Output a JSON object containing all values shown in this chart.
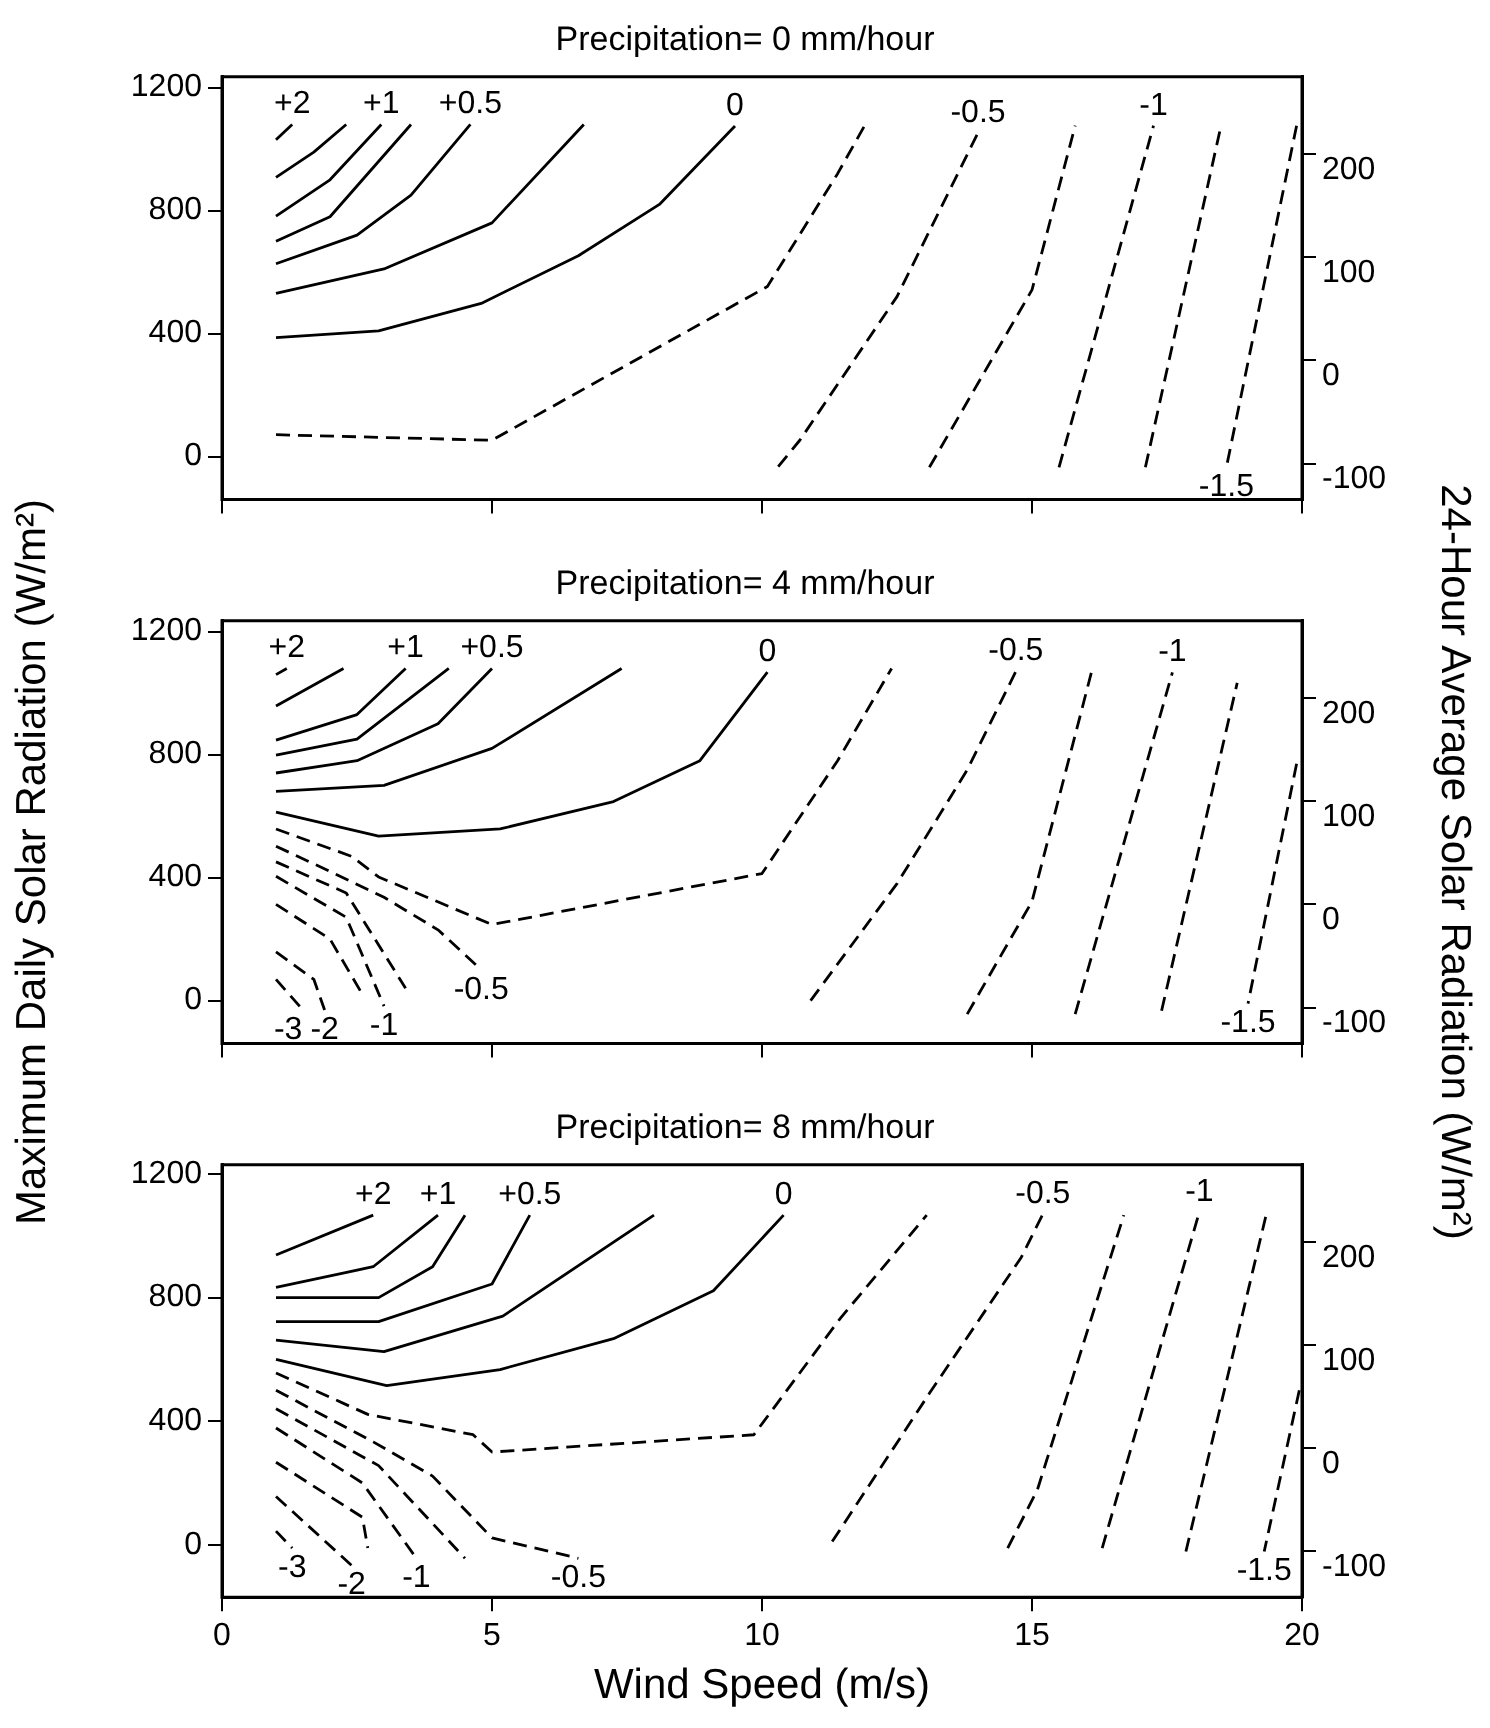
{
  "chart_data": [
    {
      "type": "line",
      "title": "Precipitation= 0 mm/hour",
      "xlim": [
        0,
        20
      ],
      "xticks": [
        0,
        5,
        10,
        15,
        20
      ],
      "ylim": [
        -140,
        1235
      ],
      "yticks": [
        0,
        400,
        800,
        1200
      ],
      "y2lim": [
        -135,
        275
      ],
      "y2ticks": [
        -100,
        0,
        100,
        200
      ],
      "tick_labels": "y",
      "grid": false,
      "legend": false,
      "series": [
        {
          "name": "+2",
          "color": "#000000",
          "line_style": "solid",
          "x": [
            1,
            1.3
          ],
          "values": [
            1030,
            1080
          ]
        },
        {
          "color": "#000000",
          "line_style": "solid",
          "x": [
            1,
            1.7,
            2.3
          ],
          "values": [
            908,
            990,
            1080
          ]
        },
        {
          "name": "+1",
          "color": "#000000",
          "line_style": "solid",
          "x": [
            1,
            2,
            2.95
          ],
          "values": [
            782,
            900,
            1080
          ]
        },
        {
          "color": "#000000",
          "line_style": "solid",
          "x": [
            1,
            2,
            3.5
          ],
          "values": [
            700,
            780,
            1080
          ]
        },
        {
          "name": "+0.5",
          "color": "#000000",
          "line_style": "solid",
          "x": [
            1,
            2.5,
            3.5,
            4.6
          ],
          "values": [
            627,
            720,
            850,
            1080
          ]
        },
        {
          "color": "#000000",
          "line_style": "solid",
          "x": [
            1,
            3,
            5,
            6.7
          ],
          "values": [
            531,
            610,
            760,
            1080
          ]
        },
        {
          "name": "0",
          "color": "#000000",
          "line_style": "solid",
          "x": [
            1,
            2.9,
            4.8,
            6.6,
            8.1,
            9.5
          ],
          "values": [
            387,
            409,
            498,
            653,
            820,
            1075
          ]
        },
        {
          "color": "#000000",
          "line_style": "dashed",
          "x": [
            1,
            5,
            10.1,
            11.4,
            11.9
          ],
          "values": [
            71,
            53,
            553,
            920,
            1076
          ]
        },
        {
          "name": "-0.5",
          "color": "#000000",
          "line_style": "dashed",
          "x": [
            10.3,
            10.7,
            12.5,
            14.0
          ],
          "values": [
            -33,
            53,
            520,
            1053
          ]
        },
        {
          "color": "#000000",
          "line_style": "dashed",
          "x": [
            13.1,
            15.0,
            15.8
          ],
          "values": [
            -35,
            542,
            1076
          ]
        },
        {
          "name": "-1",
          "color": "#000000",
          "line_style": "dashed",
          "x": [
            15.5,
            17.25
          ],
          "values": [
            -35,
            1076
          ]
        },
        {
          "color": "#000000",
          "line_style": "dashed",
          "x": [
            17.1,
            18.5
          ],
          "values": [
            -35,
            1076
          ]
        },
        {
          "name": "-1.5",
          "color": "#000000",
          "line_style": "dashed",
          "x": [
            19.9,
            18.6
          ],
          "values": [
            1076,
            -35
          ]
        }
      ]
    },
    {
      "type": "line",
      "title": "Precipitation= 4 mm/hour",
      "ylabel": "Maximum Daily Solar Radiation (W/m²)",
      "y2label": "24-Hour Average Solar Radiation (W/m²)",
      "xlim": [
        0,
        20
      ],
      "xticks": [
        0,
        5,
        10,
        15,
        20
      ],
      "ylim": [
        -140,
        1235
      ],
      "yticks": [
        0,
        400,
        800,
        1200
      ],
      "y2lim": [
        -135,
        275
      ],
      "y2ticks": [
        -100,
        0,
        100,
        200
      ],
      "tick_labels": "y",
      "grid": false,
      "legend": false,
      "series": [
        {
          "name": "+2",
          "color": "#000000",
          "line_style": "solid",
          "x": [
            1,
            1.2
          ],
          "values": [
            1060,
            1080
          ]
        },
        {
          "color": "#000000",
          "line_style": "solid",
          "x": [
            1,
            2.25
          ],
          "values": [
            958,
            1080
          ]
        },
        {
          "name": "+1",
          "color": "#000000",
          "line_style": "solid",
          "x": [
            1,
            2.5,
            3.4
          ],
          "values": [
            847,
            930,
            1080
          ]
        },
        {
          "color": "#000000",
          "line_style": "solid",
          "x": [
            1,
            2.5,
            4.2
          ],
          "values": [
            798,
            850,
            1080
          ]
        },
        {
          "name": "+0.5",
          "color": "#000000",
          "line_style": "solid",
          "x": [
            1,
            2.5,
            4,
            5
          ],
          "values": [
            740,
            780,
            900,
            1080
          ]
        },
        {
          "color": "#000000",
          "line_style": "solid",
          "x": [
            1,
            3,
            5,
            7.4
          ],
          "values": [
            680,
            700,
            820,
            1080
          ]
        },
        {
          "name": "0",
          "color": "#000000",
          "line_style": "solid",
          "x": [
            1,
            2.9,
            5.15,
            7.25,
            8.85,
            10.1
          ],
          "values": [
            613,
            535,
            558,
            647,
            780,
            1068
          ]
        },
        {
          "color": "#000000",
          "line_style": "dashed",
          "x": [
            1,
            2.4,
            2.9,
            5,
            10,
            11.4,
            12.4
          ],
          "values": [
            558,
            469,
            402,
            247,
            413,
            780,
            1080
          ]
        },
        {
          "name": "-0.5",
          "color": "#000000",
          "line_style": "dashed",
          "x": [
            1,
            2,
            3,
            4,
            4.8
          ],
          "values": [
            502,
            420,
            336,
            230,
            100
          ]
        },
        {
          "color": "#000000",
          "line_style": "dashed",
          "x": [
            1,
            2.3,
            3.4
          ],
          "values": [
            451,
            350,
            40
          ]
        },
        {
          "name": "-1",
          "color": "#000000",
          "line_style": "dashed",
          "x": [
            1,
            2.3,
            3
          ],
          "values": [
            404,
            271,
            -18
          ]
        },
        {
          "color": "#000000",
          "line_style": "dashed",
          "x": [
            1,
            2,
            2.6
          ],
          "values": [
            313,
            200,
            20
          ]
        },
        {
          "name": "-2",
          "color": "#000000",
          "line_style": "dashed",
          "x": [
            1,
            1.7,
            1.9
          ],
          "values": [
            158,
            69,
            -31
          ]
        },
        {
          "name": "-3",
          "color": "#000000",
          "line_style": "dashed",
          "x": [
            1,
            1.5
          ],
          "values": [
            69,
            -31
          ]
        },
        {
          "name": "-0.5",
          "color": "#000000",
          "line_style": "dashed",
          "x": [
            10.9,
            12.5,
            13.8,
            14.7
          ],
          "values": [
            0,
            380,
            750,
            1070
          ]
        },
        {
          "color": "#000000",
          "line_style": "dashed",
          "x": [
            13.8,
            15,
            16.1
          ],
          "values": [
            -44,
            322,
            1067
          ]
        },
        {
          "name": "-1",
          "color": "#000000",
          "line_style": "dashed",
          "x": [
            15.8,
            17.6
          ],
          "values": [
            -44,
            1067
          ]
        },
        {
          "color": "#000000",
          "line_style": "dashed",
          "x": [
            17.4,
            18.8
          ],
          "values": [
            -33,
            1033
          ]
        },
        {
          "name": "-1.5",
          "color": "#000000",
          "line_style": "dashed",
          "x": [
            19.9,
            19
          ],
          "values": [
            770,
            -10
          ]
        }
      ]
    },
    {
      "type": "line",
      "title": "Precipitation= 8 mm/hour",
      "xlabel": "Wind Speed (m/s)",
      "xlim": [
        0,
        20
      ],
      "xticks": [
        0,
        5,
        10,
        15,
        20
      ],
      "ylim": [
        -170,
        1230
      ],
      "yticks": [
        0,
        400,
        800,
        1200
      ],
      "y2lim": [
        -145,
        275
      ],
      "y2ticks": [
        -100,
        0,
        100,
        200
      ],
      "grid": false,
      "legend": false,
      "series": [
        {
          "name": "+2",
          "color": "#000000",
          "line_style": "solid",
          "x": [
            1,
            2.8
          ],
          "values": [
            938,
            1067
          ]
        },
        {
          "name": "+1",
          "color": "#000000",
          "line_style": "solid",
          "x": [
            1,
            2.8,
            4
          ],
          "values": [
            833,
            900,
            1067
          ]
        },
        {
          "color": "#000000",
          "line_style": "solid",
          "x": [
            1,
            2.9,
            3.9,
            4.5
          ],
          "values": [
            800,
            800,
            900,
            1067
          ]
        },
        {
          "name": "+0.5",
          "color": "#000000",
          "line_style": "solid",
          "x": [
            1,
            2.9,
            5,
            5.7
          ],
          "values": [
            722,
            722,
            844,
            1067
          ]
        },
        {
          "color": "#000000",
          "line_style": "solid",
          "x": [
            1,
            3,
            5.2,
            8
          ],
          "values": [
            662,
            625,
            740,
            1067
          ]
        },
        {
          "name": "0",
          "color": "#000000",
          "line_style": "solid",
          "x": [
            1,
            3.05,
            5.15,
            7.25,
            9.1,
            10.4
          ],
          "values": [
            600,
            515,
            567,
            667,
            822,
            1067
          ]
        },
        {
          "color": "#000000",
          "line_style": "dashed",
          "x": [
            1,
            2.7,
            4.65,
            5,
            9.85,
            11.45,
            13.05
          ],
          "values": [
            556,
            422,
            356,
            300,
            356,
            733,
            1067
          ]
        },
        {
          "name": "-0.5",
          "color": "#000000",
          "line_style": "dashed",
          "x": [
            1,
            2.8,
            3.9,
            5,
            6.6
          ],
          "values": [
            500,
            333,
            222,
            22,
            -44
          ]
        },
        {
          "color": "#000000",
          "line_style": "dashed",
          "x": [
            1,
            2.9,
            4.5
          ],
          "values": [
            440,
            256,
            -44
          ]
        },
        {
          "name": "-1",
          "color": "#000000",
          "line_style": "dashed",
          "x": [
            1,
            2.6,
            3.6
          ],
          "values": [
            378,
            200,
            -44
          ]
        },
        {
          "color": "#000000",
          "line_style": "dashed",
          "x": [
            1,
            2.6,
            2.7
          ],
          "values": [
            267,
            89,
            -11
          ]
        },
        {
          "name": "-2",
          "color": "#000000",
          "line_style": "dashed",
          "x": [
            1,
            2.4
          ],
          "values": [
            156,
            -67
          ]
        },
        {
          "name": "-3",
          "color": "#000000",
          "line_style": "dashed",
          "x": [
            1,
            1.3
          ],
          "values": [
            44,
            -11
          ]
        },
        {
          "name": "-0.5",
          "color": "#000000",
          "line_style": "dashed",
          "x": [
            11.3,
            13.1,
            14.8,
            15.2
          ],
          "values": [
            10,
            490,
            930,
            1070
          ]
        },
        {
          "color": "#000000",
          "line_style": "dashed",
          "x": [
            14.55,
            15.1,
            16.7
          ],
          "values": [
            -11,
            178,
            1067
          ]
        },
        {
          "name": "-1",
          "color": "#000000",
          "line_style": "dashed",
          "x": [
            16.3,
            18.1
          ],
          "values": [
            -11,
            1078
          ]
        },
        {
          "color": "#000000",
          "line_style": "dashed",
          "x": [
            17.85,
            19.35
          ],
          "values": [
            -22,
            1078
          ]
        },
        {
          "name": "-1.5",
          "color": "#000000",
          "line_style": "dashed",
          "x": [
            19.95,
            19.3
          ],
          "values": [
            500,
            -22
          ]
        }
      ]
    }
  ]
}
